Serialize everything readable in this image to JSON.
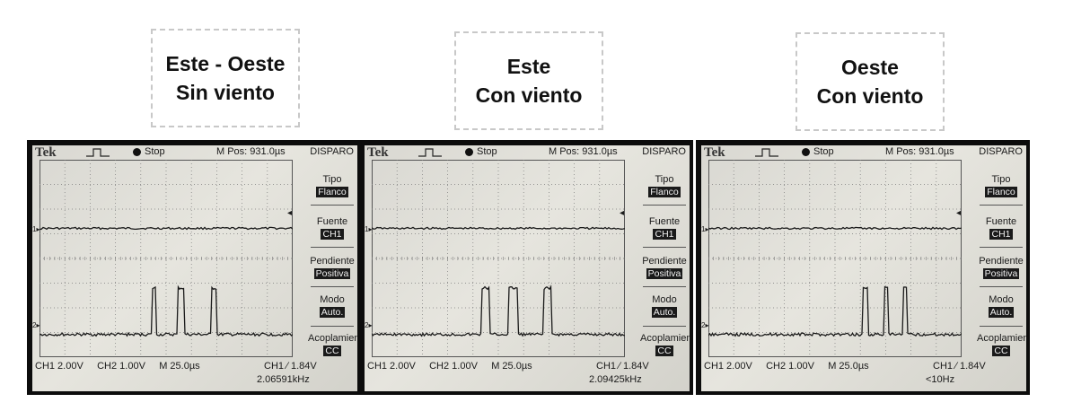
{
  "panels": [
    {
      "label_line1": "Este - Oeste",
      "label_line2": "Sin viento",
      "pulses": [
        [
          4.43,
          4.61
        ],
        [
          5.45,
          5.73
        ],
        [
          6.78,
          7.0
        ]
      ],
      "freq": "2.06591kHz"
    },
    {
      "label_line1": "Este",
      "label_line2": "Con viento",
      "pulses": [
        [
          4.35,
          4.68
        ],
        [
          5.42,
          5.78
        ],
        [
          6.78,
          7.08
        ]
      ],
      "freq": "2.09425kHz"
    },
    {
      "label_line1": "Oeste",
      "label_line2": "Con viento",
      "pulses": [
        [
          6.1,
          6.28
        ],
        [
          6.92,
          7.12
        ],
        [
          7.68,
          7.85
        ]
      ],
      "freq": "<10Hz"
    }
  ],
  "scope": {
    "brand": "Tek",
    "status": "Stop",
    "mpos": "M Pos: 931.0µs",
    "menu_title": "DISPARO",
    "tipo_label": "Tipo",
    "tipo_value": "Flanco",
    "fuente_label": "Fuente",
    "fuente_value": "CH1",
    "pendiente_label": "Pendiente",
    "pendiente_value": "Positiva",
    "modo_label": "Modo",
    "modo_value": "Auto.",
    "acoplamiento_label": "Acoplamiento",
    "acoplamiento_value": "CC",
    "ch1": "CH1  2.00V",
    "ch2": "CH2  1.00V",
    "timebase": "M 25.0µs",
    "trigger": "CH1 ∕ 1.84V",
    "ch1_marker": "1▸",
    "ch2_marker": "2▸",
    "trigger_marker": "◂"
  },
  "colors": {
    "screen_bg": "#dedcd5",
    "trace": "#1a1a1a",
    "bezel": "#0c0c0c",
    "label_border": "#c8c8c8"
  }
}
